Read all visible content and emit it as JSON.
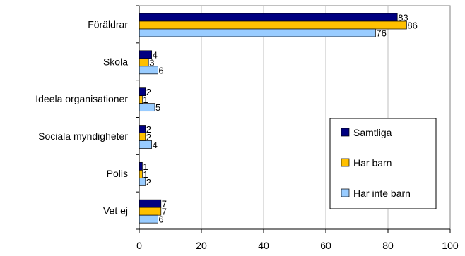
{
  "chart_data": {
    "type": "bar",
    "orientation": "horizontal",
    "title": "",
    "xlabel": "",
    "ylabel": "",
    "xlim": [
      0,
      100
    ],
    "x_ticks": [
      0,
      20,
      40,
      60,
      80,
      100
    ],
    "grid": "vertical gridlines",
    "legend_position": "inside bottom-right",
    "categories": [
      "Föräldrar",
      "Skola",
      "Ideela organisationer",
      "Sociala myndigheter",
      "Polis",
      "Vet ej"
    ],
    "series": [
      {
        "name": "Samtliga",
        "color": "#000080",
        "values": [
          83,
          4,
          2,
          2,
          1,
          7
        ]
      },
      {
        "name": "Har barn",
        "color": "#FFC000",
        "values": [
          86,
          3,
          1,
          2,
          1,
          7
        ]
      },
      {
        "name": "Har inte barn",
        "color": "#99CCFF",
        "values": [
          76,
          6,
          5,
          4,
          2,
          6
        ]
      }
    ]
  }
}
